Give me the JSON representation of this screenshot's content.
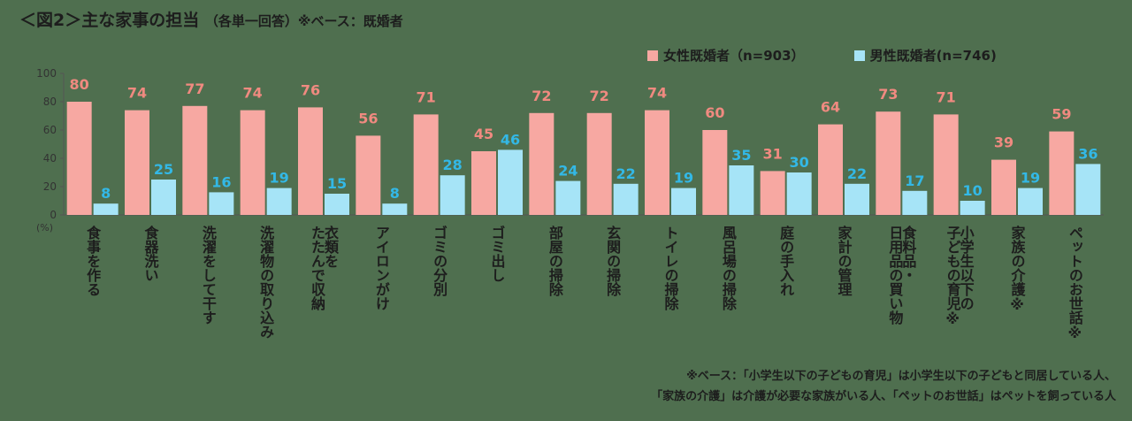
{
  "title": {
    "main": "＜図2＞主な家事の担当",
    "sub": "（各単一回答）※ベース：既婚者"
  },
  "colors": {
    "female": "#f7a8a2",
    "male": "#a6e4f7",
    "female_label": "#f08a80",
    "male_label": "#33b8e6",
    "axis": "#555555",
    "text": "#1d1d1d"
  },
  "chart_data": {
    "type": "bar",
    "categories": [
      "食事を作る",
      "食器洗い",
      "洗濯をして干す",
      "洗濯物の取り込み",
      "衣類を\nたたんで収納",
      "アイロンがけ",
      "ゴミの分別",
      "ゴミ出し",
      "部屋の掃除",
      "玄関の掃除",
      "トイレの掃除",
      "風呂場の掃除",
      "庭の手入れ",
      "家計の管理",
      "食料品・\n日用品の買い物",
      "小学生以下の\n子どもの育児※",
      "家族の介護※",
      "ペットのお世話※"
    ],
    "series": [
      {
        "name": "女性既婚者（n=903）",
        "values": [
          80,
          74,
          77,
          74,
          76,
          56,
          71,
          45,
          72,
          72,
          74,
          60,
          31,
          64,
          73,
          71,
          39,
          59
        ]
      },
      {
        "name": "男性既婚者(n=746)",
        "values": [
          8,
          25,
          16,
          19,
          15,
          8,
          28,
          46,
          24,
          22,
          19,
          35,
          30,
          22,
          17,
          10,
          19,
          36
        ]
      }
    ],
    "yticks": [
      "0",
      "20",
      "40",
      "60",
      "80",
      "100"
    ],
    "yunit": "(%)",
    "ylim": [
      0,
      100
    ],
    "grid": false,
    "legend": "top-right"
  },
  "footnote": {
    "line1": "※ベース：「小学生以下の子どもの育児」は小学生以下の子どもと同居している人、",
    "line2": "「家族の介護」は介護が必要な家族がいる人、「ペットのお世話」はペットを飼っている人"
  }
}
